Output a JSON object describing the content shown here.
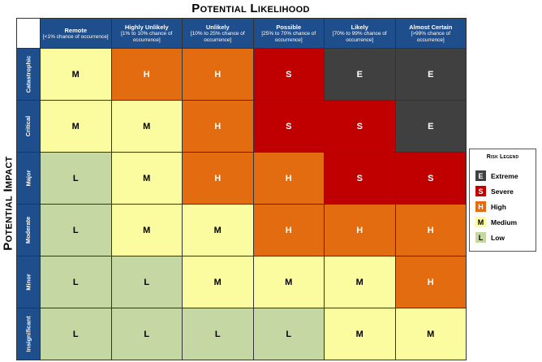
{
  "titles": {
    "likelihood": "Potential Likelihood",
    "impact": "Potential Impact"
  },
  "columns": [
    {
      "name": "Remote",
      "sub": "[<1% chance of occurrence]"
    },
    {
      "name": "Highly Unlikely",
      "sub": "[1% to 10% chance of occurrence]"
    },
    {
      "name": "Unlikely",
      "sub": "[10% to 25% chance of occurrence]"
    },
    {
      "name": "Possible",
      "sub": "[25% to 70% chance of occurrence]"
    },
    {
      "name": "Likely",
      "sub": "[70% to 99% chance of occurrence]"
    },
    {
      "name": "Almost Certain",
      "sub": "[>99% chance of occurrence]"
    }
  ],
  "rows": [
    {
      "name": "Catastrophic",
      "cells": [
        "M",
        "H",
        "H",
        "S",
        "E",
        "E"
      ]
    },
    {
      "name": "Critical",
      "cells": [
        "M",
        "M",
        "H",
        "S",
        "S",
        "E"
      ]
    },
    {
      "name": "Major",
      "cells": [
        "L",
        "M",
        "H",
        "H",
        "S",
        "S"
      ]
    },
    {
      "name": "Moderate",
      "cells": [
        "L",
        "M",
        "M",
        "H",
        "H",
        "H"
      ]
    },
    {
      "name": "Minor",
      "cells": [
        "L",
        "L",
        "M",
        "M",
        "M",
        "H"
      ]
    },
    {
      "name": "Insignificant",
      "cells": [
        "L",
        "L",
        "L",
        "L",
        "M",
        "M"
      ]
    }
  ],
  "legend": {
    "title": "Risk Legend",
    "items": [
      {
        "code": "E",
        "label": "Extreme"
      },
      {
        "code": "S",
        "label": "Severe"
      },
      {
        "code": "H",
        "label": "High"
      },
      {
        "code": "M",
        "label": "Medium"
      },
      {
        "code": "L",
        "label": "Low"
      }
    ]
  },
  "colors": {
    "header_blue": "#1f4e8c",
    "low": "#c5d7a2",
    "medium": "#fbfca0",
    "high": "#e46c10",
    "severe": "#c00000",
    "extreme": "#404040"
  }
}
